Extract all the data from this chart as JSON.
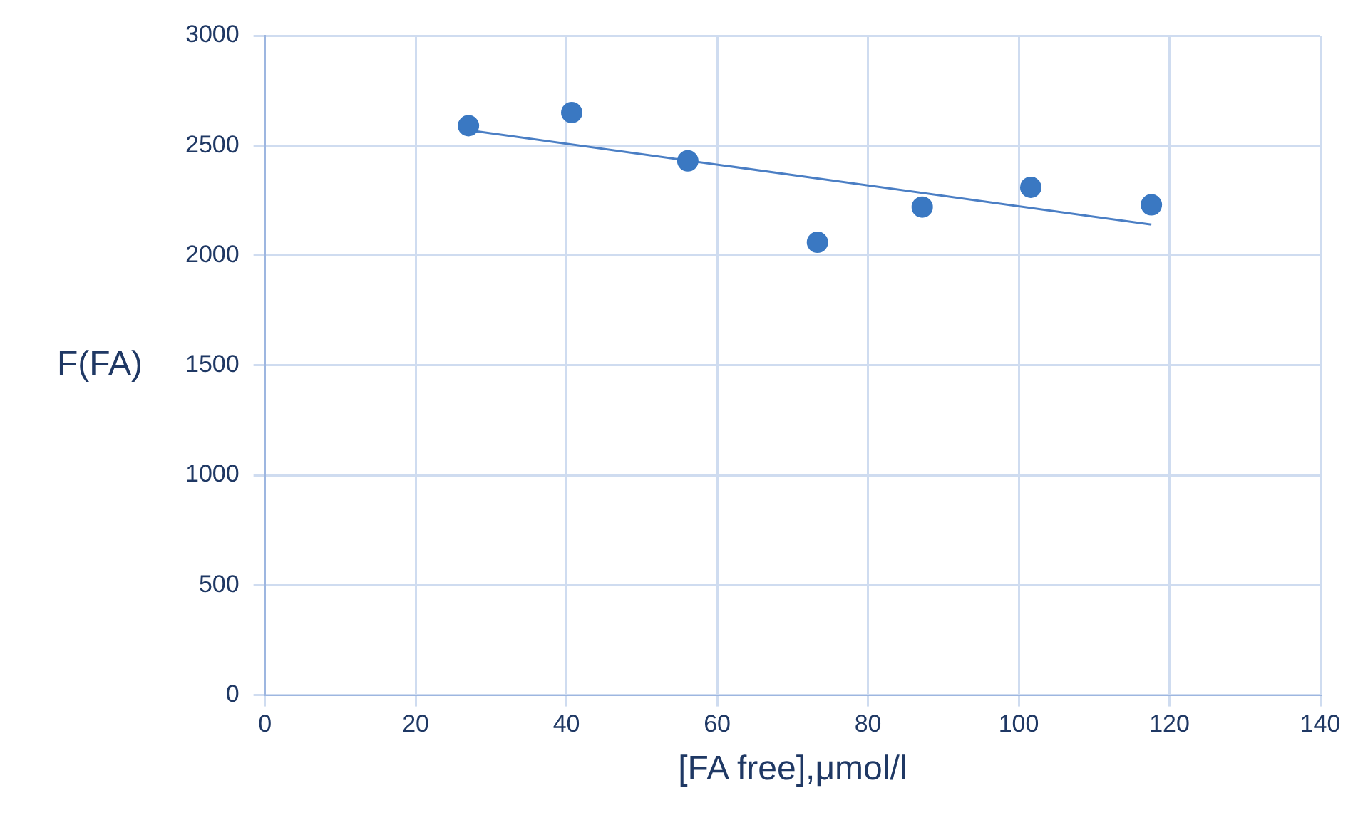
{
  "chart_data": {
    "type": "scatter",
    "xlabel": "[FA free],μmol/l",
    "ylabel": "F(FA)",
    "xlim": [
      0,
      140
    ],
    "xticks": [
      0,
      20,
      40,
      60,
      80,
      100,
      120,
      140
    ],
    "ylim": [
      0,
      3000
    ],
    "yticks": [
      0,
      500,
      1000,
      1500,
      2000,
      2500,
      3000
    ],
    "grid": true,
    "legend": false,
    "series": [
      {
        "marker": "circle",
        "color": "#3a78c2",
        "x": [
          27,
          40.7,
          56.1,
          73.3,
          87.2,
          101.6,
          117.6
        ],
        "values": [
          2590,
          2650,
          2430,
          2060,
          2220,
          2310,
          2230
        ]
      },
      {
        "type": "line",
        "marker": "none",
        "color": "#4a7ec4",
        "x": [
          27,
          117.6
        ],
        "values": [
          2570,
          2140
        ]
      }
    ]
  }
}
